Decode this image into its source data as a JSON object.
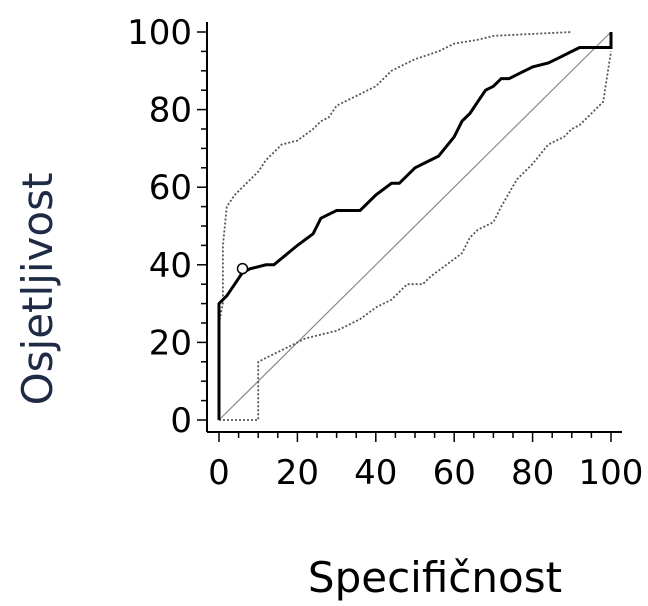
{
  "chart_data": {
    "type": "line",
    "xlabel": "Specifičnost",
    "ylabel": "Osjetljivost",
    "xlim": [
      0,
      100
    ],
    "ylim": [
      0,
      100
    ],
    "x_ticks": [
      0,
      20,
      40,
      60,
      80,
      100
    ],
    "y_ticks": [
      0,
      20,
      40,
      60,
      80,
      100
    ],
    "grid": false,
    "legend": "none",
    "colors": {
      "roc": "#000000",
      "ci": "#555555",
      "reference": "#888888",
      "ylabel": "#1f2a44",
      "xlabel": "#000000"
    },
    "series": [
      {
        "style": "solid-thick",
        "x": [
          0,
          0,
          2,
          4,
          6,
          8,
          12,
          14,
          20,
          24,
          26,
          30,
          34,
          36,
          40,
          44,
          46,
          50,
          54,
          56,
          60,
          62,
          64,
          66,
          68,
          70,
          72,
          74,
          76,
          80,
          84,
          86,
          88,
          90,
          92,
          100,
          100
        ],
        "y": [
          0,
          30,
          32,
          35,
          38,
          39,
          40,
          40,
          45,
          48,
          52,
          54,
          54,
          54,
          58,
          61,
          61,
          65,
          67,
          68,
          73,
          77,
          79,
          82,
          85,
          86,
          88,
          88,
          89,
          91,
          92,
          93,
          94,
          95,
          96,
          96,
          100
        ]
      },
      {
        "style": "dotted",
        "x": [
          0,
          0,
          1,
          1,
          2,
          4,
          6,
          8,
          10,
          12,
          14,
          16,
          20,
          24,
          26,
          28,
          30,
          32,
          36,
          40,
          44,
          46,
          50,
          56,
          60,
          66,
          70,
          80,
          90
        ],
        "y": [
          0,
          25,
          30,
          45,
          55,
          58,
          60,
          62,
          64,
          67,
          69,
          71,
          72,
          75,
          77,
          78,
          81,
          82,
          84,
          86,
          90,
          91,
          93,
          95,
          97,
          98,
          99,
          99.5,
          100
        ]
      },
      {
        "style": "dotted",
        "x": [
          0,
          10,
          10,
          14,
          18,
          22,
          26,
          30,
          36,
          40,
          44,
          48,
          52,
          54,
          58,
          62,
          64,
          66,
          70,
          72,
          76,
          80,
          84,
          88,
          90,
          92,
          96,
          98,
          100
        ],
        "y": [
          0,
          0,
          15,
          17,
          19,
          21,
          22,
          23,
          26,
          29,
          31,
          35,
          35,
          37,
          40,
          43,
          47,
          49,
          51,
          55,
          62,
          66,
          71,
          73,
          75,
          76,
          80,
          82,
          95
        ]
      },
      {
        "style": "reference",
        "x": [
          0,
          100
        ],
        "y": [
          0,
          100
        ]
      }
    ],
    "annotations": [
      {
        "type": "open-circle-marker",
        "x": 6,
        "y": 39
      }
    ]
  }
}
